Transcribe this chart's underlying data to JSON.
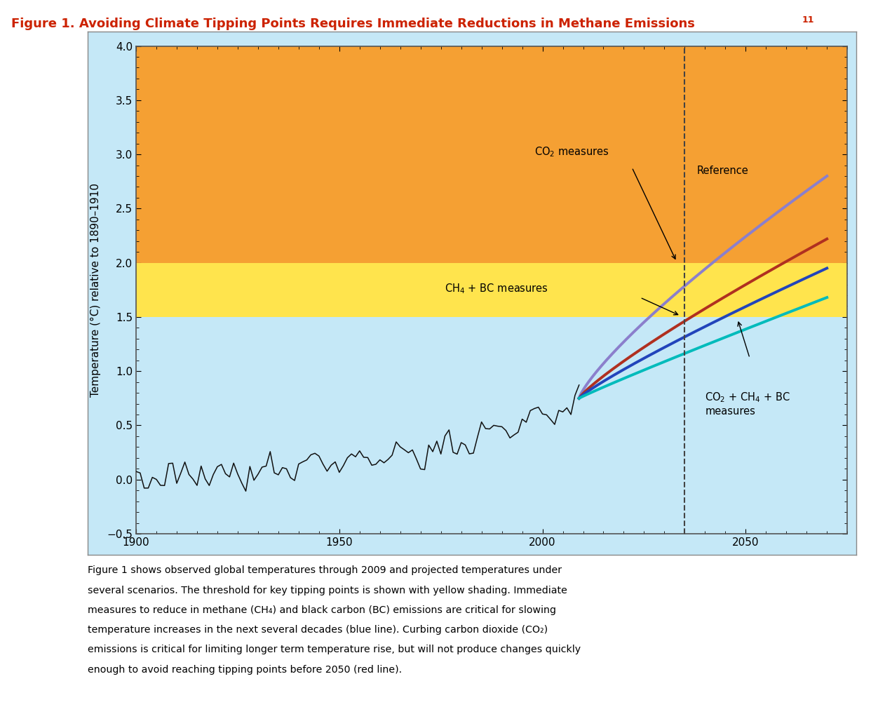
{
  "title_main": "Figure 1. Avoiding Climate Tipping Points Requires Immediate Reductions in Methane Emissions ",
  "title_super": "11",
  "title_color": "#cc2200",
  "ylabel": "Temperature (°C) relative to 1890–1910",
  "ylim": [
    -0.5,
    4.0
  ],
  "xlim": [
    1900,
    2075
  ],
  "xticks": [
    1900,
    1950,
    2000,
    2050
  ],
  "yticks": [
    -0.5,
    0.0,
    0.5,
    1.0,
    1.5,
    2.0,
    2.5,
    3.0,
    3.5,
    4.0
  ],
  "bg_outer": "#c5e8f7",
  "bg_plot": "#c5e8f7",
  "orange_color": "#f5a033",
  "yellow_color": "#ffe44d",
  "orange_ymin": 2.0,
  "orange_ymax": 4.05,
  "yellow_ymin": 1.5,
  "yellow_ymax": 2.0,
  "dashed_line_x": 2035,
  "reference_color": "#8b7fcc",
  "co2_color": "#b03020",
  "ch4_bc_color": "#2244bb",
  "combined_color": "#00bbbb",
  "obs_color": "#111111",
  "caption": "Figure 1 shows observed global temperatures through 2009 and projected temperatures under several scenarios. The threshold for key tipping points is shown with yellow shading. Immediate measures to reduce in methane (CH₄) and black carbon (BC) emissions are critical for slowing temperature increases in the next several decades (blue line). Curbing carbon dioxide (CO₂) emissions is critical for limiting longer term temperature rise, but will not produce changes quickly enough to avoid reaching tipping points before 2050 (red line)."
}
